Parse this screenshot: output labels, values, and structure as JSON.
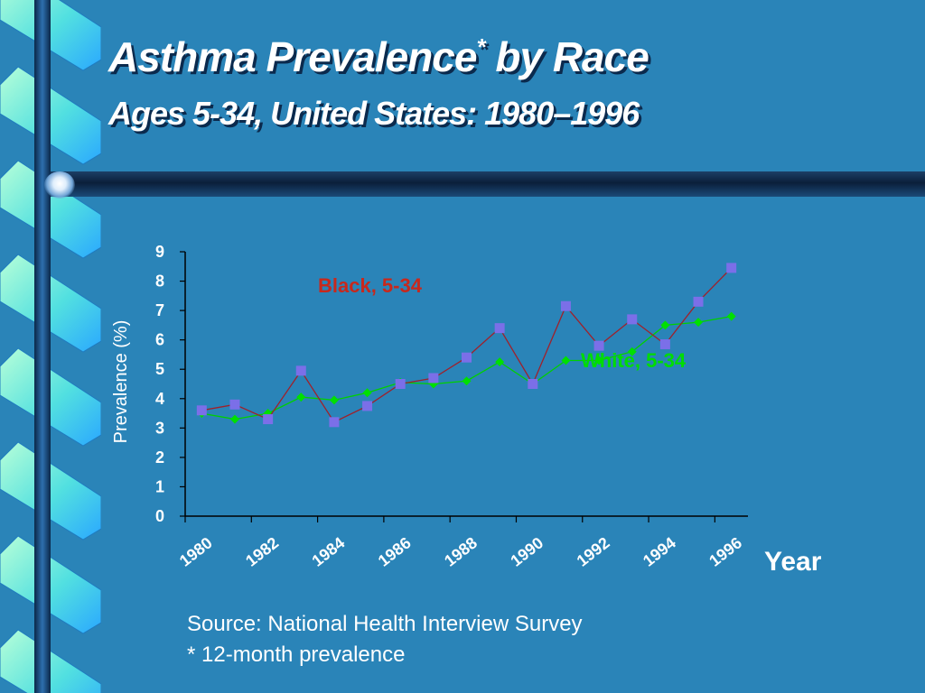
{
  "slide": {
    "title": "Asthma Prevalence",
    "title_marker": "*",
    "title_suffix": " by Race",
    "subtitle": "Ages 5-34, United States: 1980–1996"
  },
  "source": {
    "line1": "Source:  National Health Interview Survey",
    "line2": "* 12-month prevalence"
  },
  "colors": {
    "background": "#2a84b8",
    "black_line": "#a0202a",
    "black_marker": "#7b6fe8",
    "white_line": "#00d000",
    "white_marker": "#00e000",
    "black_annotation": "#c8281c",
    "white_annotation": "#00dd00"
  },
  "chart_data": {
    "type": "line",
    "title": "",
    "xlabel": "Year",
    "ylabel": "Prevalence (%)",
    "ylim": [
      0,
      9
    ],
    "yticks": [
      0,
      1,
      2,
      3,
      4,
      5,
      6,
      7,
      8,
      9
    ],
    "x": [
      1980,
      1981,
      1982,
      1983,
      1984,
      1985,
      1986,
      1987,
      1988,
      1989,
      1990,
      1991,
      1992,
      1993,
      1994,
      1995,
      1996
    ],
    "xtick_labels": [
      "1980",
      "1982",
      "1984",
      "1986",
      "1988",
      "1990",
      "1992",
      "1994",
      "1996"
    ],
    "grid": false,
    "series": [
      {
        "name": "Black, 5-34",
        "marker": "square",
        "values": [
          3.6,
          3.8,
          3.3,
          4.95,
          3.2,
          3.75,
          4.5,
          4.7,
          5.4,
          6.4,
          4.5,
          7.15,
          5.8,
          6.7,
          5.85,
          7.3,
          8.45
        ]
      },
      {
        "name": "White, 5-34",
        "marker": "diamond",
        "values": [
          3.5,
          3.3,
          3.5,
          4.05,
          3.95,
          4.2,
          4.55,
          4.5,
          4.6,
          5.25,
          4.5,
          5.3,
          5.3,
          5.6,
          6.5,
          6.6,
          6.8
        ]
      }
    ]
  }
}
